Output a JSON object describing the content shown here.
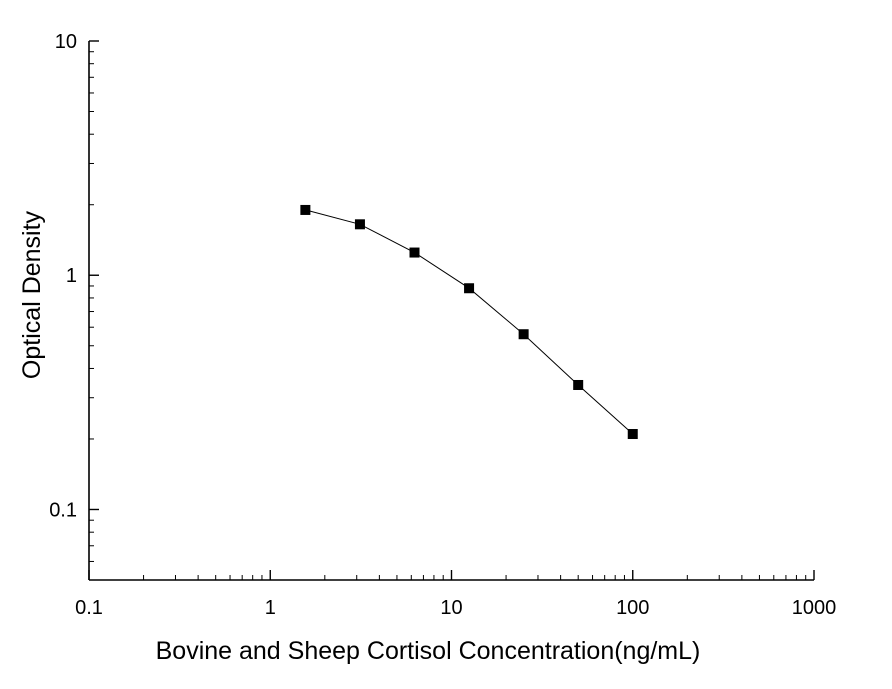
{
  "chart_data": {
    "type": "line",
    "title": "",
    "xlabel": "Bovine and Sheep Cortisol Concentration(ng/mL)",
    "ylabel": "Optical  Density",
    "x_scale": "log",
    "y_scale": "log",
    "xlim": [
      0.1,
      1000
    ],
    "ylim": [
      0.05,
      10
    ],
    "x_ticks": [
      0.1,
      1,
      10,
      100,
      1000
    ],
    "x_tick_labels": [
      "0.1",
      "1",
      "10",
      "100",
      "1000"
    ],
    "y_ticks": [
      0.1,
      1,
      10
    ],
    "y_tick_labels": [
      "0.1",
      "1",
      "10"
    ],
    "grid": false,
    "marker": "square",
    "colors": {
      "line": "#000000",
      "marker": "#000000",
      "axis": "#000000"
    },
    "series": [
      {
        "x": [
          1.5625,
          3.125,
          6.25,
          12.5,
          25,
          50,
          100
        ],
        "y": [
          1.9,
          1.65,
          1.25,
          0.88,
          0.56,
          0.34,
          0.21
        ]
      }
    ]
  }
}
